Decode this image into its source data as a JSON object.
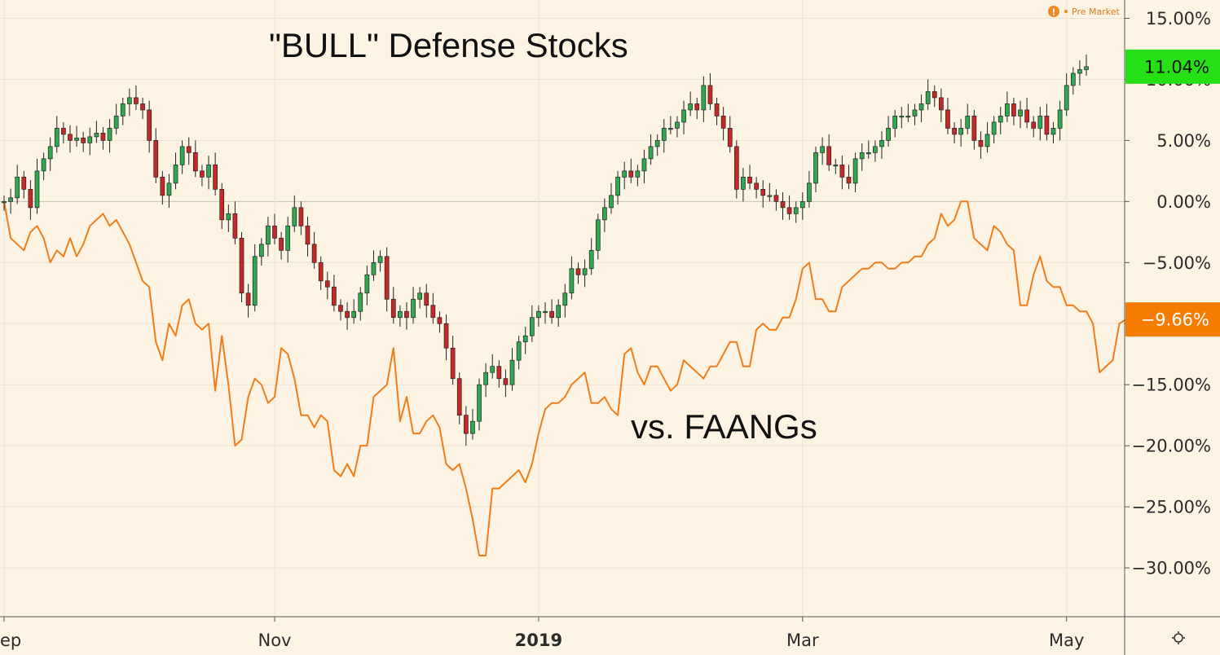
{
  "chart_data": {
    "type": "line",
    "title": "\"BULL\" Defense Stocks",
    "annotations": [
      {
        "text": "\"BULL\" Defense Stocks"
      },
      {
        "text": "vs. FAANGs"
      }
    ],
    "status": {
      "label": "Pre Market",
      "icon": "exclamation-icon"
    },
    "y_axis": {
      "side": "right",
      "unit": "%",
      "ylim": [
        -34.0,
        16.5
      ],
      "tick_values": [
        15,
        10,
        5,
        0,
        -5,
        -10,
        -15,
        -20,
        -25,
        -30
      ],
      "tick_labels": [
        "15.00%",
        "10.00%",
        "5.00%",
        "0.00%",
        "−5.00%",
        "−10.00%",
        "−15.00%",
        "−20.00%",
        "−25.00%",
        "−30.00%"
      ]
    },
    "x_axis": {
      "tick_labels": [
        "ep",
        "Nov",
        "2019",
        "Mar",
        "May"
      ],
      "bold_label": "2019",
      "tick_positions_bar": [
        0,
        41,
        81,
        121,
        161
      ]
    },
    "grid": true,
    "settings_icon": "gear-icon",
    "series": [
      {
        "name": "",
        "kind": "candlestick",
        "color_up": "#2fa84f",
        "color_down": "#c62828",
        "last_value_label": "11.04%",
        "badge_color": "#26e016",
        "close": [
          0.0,
          0.3,
          2.0,
          1.0,
          -0.5,
          2.5,
          3.5,
          4.5,
          6.0,
          5.5,
          5.0,
          5.2,
          4.8,
          5.3,
          5.6,
          5.0,
          6.0,
          7.0,
          8.0,
          8.5,
          8.0,
          7.5,
          5.0,
          2.0,
          0.5,
          1.5,
          3.0,
          4.5,
          4.0,
          2.5,
          2.0,
          3.0,
          1.0,
          -1.5,
          -1.0,
          -3.0,
          -7.5,
          -8.5,
          -4.5,
          -3.5,
          -2.0,
          -3.0,
          -4.0,
          -2.0,
          -0.5,
          -2.0,
          -3.5,
          -5.0,
          -6.5,
          -7.0,
          -8.5,
          -9.0,
          -9.5,
          -9.0,
          -7.5,
          -6.0,
          -5.0,
          -4.5,
          -8.0,
          -9.5,
          -9.0,
          -9.5,
          -8.0,
          -7.5,
          -8.5,
          -9.5,
          -10.0,
          -12.0,
          -14.5,
          -17.5,
          -19.0,
          -18.0,
          -15.0,
          -14.0,
          -13.5,
          -14.5,
          -15.0,
          -13.0,
          -11.5,
          -11.0,
          -9.5,
          -9.0,
          -9.0,
          -9.5,
          -8.5,
          -7.5,
          -5.5,
          -6.0,
          -5.5,
          -4.0,
          -1.5,
          -0.5,
          0.5,
          2.0,
          2.5,
          2.0,
          2.5,
          3.5,
          4.5,
          5.0,
          6.0,
          6.0,
          6.5,
          7.5,
          8.0,
          7.5,
          9.5,
          8.0,
          7.0,
          6.0,
          4.5,
          1.0,
          2.0,
          1.5,
          1.0,
          0.5,
          0.5,
          0.0,
          -0.5,
          -1.0,
          -0.5,
          0.0,
          1.5,
          4.0,
          4.5,
          3.0,
          3.0,
          2.0,
          1.5,
          3.5,
          4.0,
          4.0,
          4.5,
          5.0,
          6.0,
          7.0,
          7.0,
          7.0,
          7.5,
          8.0,
          9.0,
          8.5,
          7.5,
          6.0,
          5.5,
          6.0,
          7.0,
          5.0,
          4.5,
          5.5,
          6.5,
          7.0,
          8.0,
          7.0,
          7.5,
          6.5,
          6.0,
          7.0,
          5.5,
          6.0,
          7.5,
          9.5,
          10.5,
          10.8,
          11.04
        ]
      },
      {
        "name": "",
        "kind": "line",
        "color": "#f07d1a",
        "last_value_label": "−9.66%",
        "badge_color": "#f57c00",
        "values": [
          0.0,
          -3.0,
          -3.5,
          -4.0,
          -2.5,
          -2.0,
          -3.0,
          -5.0,
          -4.0,
          -4.5,
          -3.0,
          -4.5,
          -3.5,
          -2.0,
          -1.5,
          -1.0,
          -2.0,
          -1.5,
          -2.5,
          -3.5,
          -5.0,
          -6.5,
          -7.0,
          -11.5,
          -13.0,
          -10.0,
          -11.0,
          -8.5,
          -8.0,
          -10.0,
          -10.5,
          -10.0,
          -15.5,
          -11.0,
          -15.0,
          -20.0,
          -19.5,
          -16.0,
          -14.5,
          -15.0,
          -16.5,
          -16.0,
          -12.0,
          -12.5,
          -14.5,
          -17.5,
          -17.5,
          -18.5,
          -17.5,
          -18.0,
          -22.0,
          -22.5,
          -21.5,
          -22.5,
          -20.0,
          -20.0,
          -16.0,
          -15.5,
          -15.0,
          -12.0,
          -18.0,
          -16.0,
          -19.0,
          -19.0,
          -18.0,
          -17.5,
          -18.5,
          -21.5,
          -22.0,
          -21.5,
          -23.5,
          -26.0,
          -29.0,
          -29.0,
          -23.5,
          -23.5,
          -23.0,
          -22.5,
          -22.0,
          -23.0,
          -21.5,
          -19.0,
          -17.0,
          -16.5,
          -16.5,
          -16.0,
          -15.0,
          -14.5,
          -14.0,
          -16.5,
          -16.5,
          -16.0,
          -17.0,
          -17.5,
          -12.5,
          -12.0,
          -14.0,
          -15.0,
          -13.5,
          -13.5,
          -14.5,
          -15.5,
          -15.0,
          -13.0,
          -13.5,
          -14.0,
          -14.5,
          -13.5,
          -13.5,
          -12.5,
          -11.5,
          -11.5,
          -13.5,
          -13.5,
          -10.5,
          -10.0,
          -10.5,
          -10.5,
          -9.5,
          -9.5,
          -8.0,
          -5.5,
          -5.0,
          -8.0,
          -8.0,
          -9.0,
          -9.0,
          -7.0,
          -6.5,
          -6.0,
          -5.5,
          -5.5,
          -5.0,
          -5.0,
          -5.5,
          -5.5,
          -5.0,
          -5.0,
          -4.5,
          -4.5,
          -3.5,
          -3.0,
          -1.0,
          -2.0,
          -1.5,
          0.0,
          0.0,
          -3.0,
          -3.5,
          -4.0,
          -2.0,
          -2.5,
          -3.5,
          -4.0,
          -8.5,
          -8.5,
          -6.0,
          -4.5,
          -6.5,
          -7.0,
          -7.0,
          -8.5,
          -8.5,
          -9.0,
          -9.0,
          -10.0,
          -14.0,
          -13.5,
          -13.0,
          -10.0,
          -9.66
        ]
      }
    ]
  }
}
